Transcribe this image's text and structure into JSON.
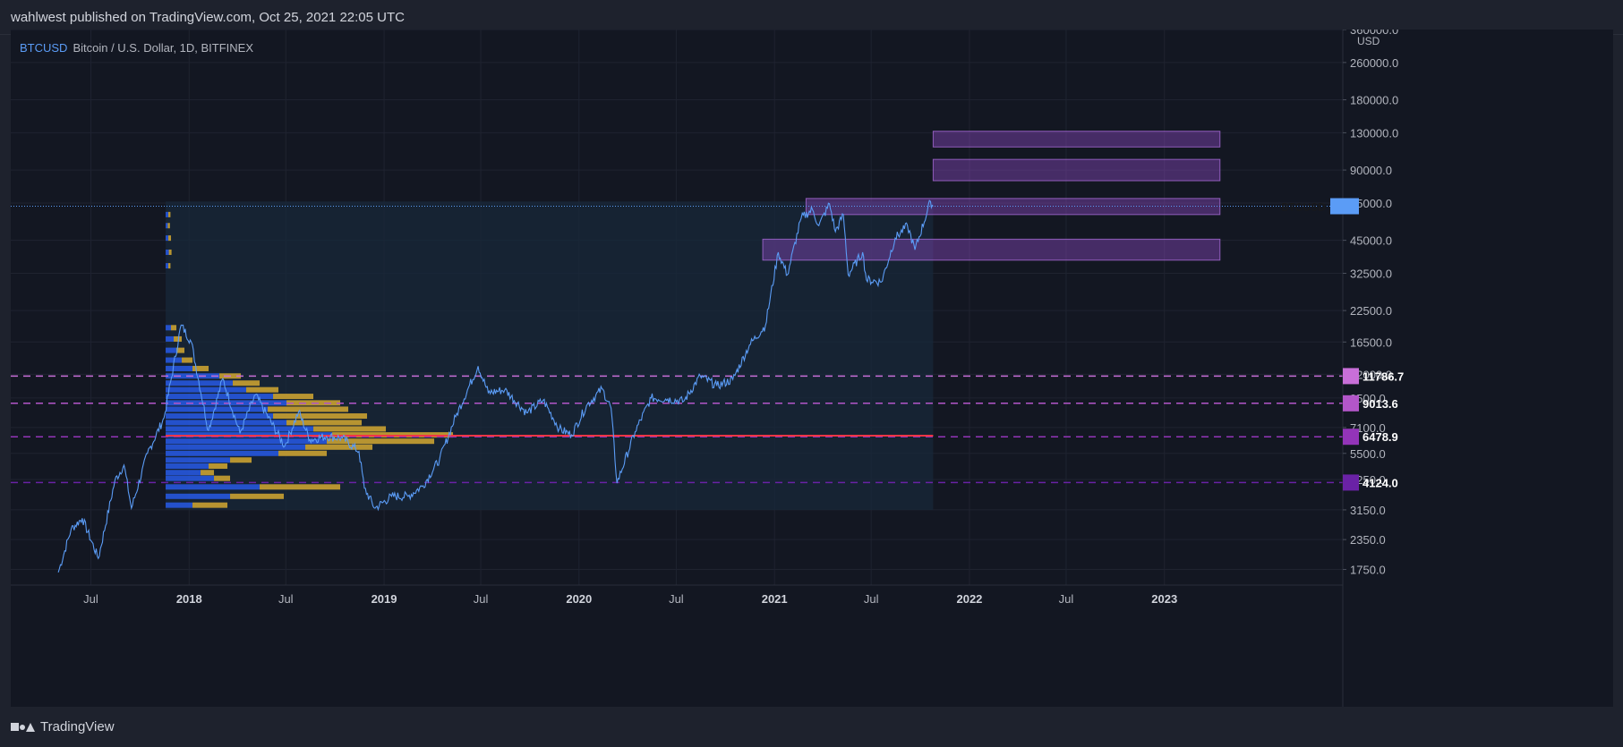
{
  "header": {
    "published": "wahlwest published on TradingView.com, Oct 25, 2021 22:05 UTC"
  },
  "legend": {
    "symbol": "BTCUSD",
    "description": "Bitcoin / U.S. Dollar, 1D, BITFINEX"
  },
  "brand": {
    "name": "TradingView"
  },
  "colors": {
    "background": "#131722",
    "price_line": "#5b9cf6",
    "poc_line": "#f23645",
    "zone_fill": "#9c4fd6",
    "volume_up": "#2962ff",
    "volume_down": "#e0b031"
  },
  "chart_data": {
    "type": "line",
    "yscale": "log",
    "ylim": [
      1500,
      360000
    ],
    "xlim": [
      "2017-02-01",
      "2023-12-01"
    ],
    "ylabel": "USD",
    "y_ticks": [
      1750,
      2350,
      3150,
      4250,
      5500,
      7100,
      9500,
      12000,
      16500,
      22500,
      32500,
      45000,
      65000,
      90000,
      130000,
      180000,
      260000,
      360000
    ],
    "y_tick_labels": [
      "1750.0",
      "2350.0",
      "3150.0",
      "4250.0",
      "5500.0",
      "7100.0",
      "9500.0",
      "12000.0",
      "16500.0",
      "22500.0",
      "32500.0",
      "45000.0",
      "65000.0",
      "90000.0",
      "130000.0",
      "180000.0",
      "260000.0",
      "360000.0"
    ],
    "x_ticks": [
      {
        "date": "2017-07-01",
        "label": "Jul"
      },
      {
        "date": "2018-01-01",
        "label": "2018"
      },
      {
        "date": "2018-07-01",
        "label": "Jul"
      },
      {
        "date": "2019-01-01",
        "label": "2019"
      },
      {
        "date": "2019-07-01",
        "label": "Jul"
      },
      {
        "date": "2020-01-01",
        "label": "2020"
      },
      {
        "date": "2020-07-01",
        "label": "Jul"
      },
      {
        "date": "2021-01-01",
        "label": "2021"
      },
      {
        "date": "2021-07-01",
        "label": "Jul"
      },
      {
        "date": "2022-01-01",
        "label": "2022"
      },
      {
        "date": "2022-07-01",
        "label": "Jul"
      },
      {
        "date": "2023-01-01",
        "label": "2023"
      }
    ],
    "series": [
      {
        "points": [
          [
            "2017-05-01",
            1700
          ],
          [
            "2017-05-25",
            2600
          ],
          [
            "2017-06-15",
            2900
          ],
          [
            "2017-07-15",
            1950
          ],
          [
            "2017-08-15",
            4200
          ],
          [
            "2017-09-01",
            4900
          ],
          [
            "2017-09-15",
            3200
          ],
          [
            "2017-10-15",
            5500
          ],
          [
            "2017-11-15",
            7800
          ],
          [
            "2017-12-17",
            19500
          ],
          [
            "2018-01-05",
            16500
          ],
          [
            "2018-02-06",
            6900
          ],
          [
            "2018-03-05",
            11500
          ],
          [
            "2018-04-06",
            6700
          ],
          [
            "2018-05-05",
            9800
          ],
          [
            "2018-06-29",
            5900
          ],
          [
            "2018-07-25",
            8300
          ],
          [
            "2018-08-15",
            6300
          ],
          [
            "2018-09-15",
            6500
          ],
          [
            "2018-10-15",
            6400
          ],
          [
            "2018-11-15",
            5600
          ],
          [
            "2018-11-25",
            3900
          ],
          [
            "2018-12-15",
            3200
          ],
          [
            "2019-01-15",
            3600
          ],
          [
            "2019-02-15",
            3600
          ],
          [
            "2019-03-15",
            4000
          ],
          [
            "2019-04-15",
            5200
          ],
          [
            "2019-05-15",
            7900
          ],
          [
            "2019-06-26",
            13000
          ],
          [
            "2019-07-15",
            10000
          ],
          [
            "2019-08-15",
            10300
          ],
          [
            "2019-09-25",
            8200
          ],
          [
            "2019-10-26",
            9300
          ],
          [
            "2019-11-25",
            7000
          ],
          [
            "2019-12-18",
            6600
          ],
          [
            "2020-01-15",
            8800
          ],
          [
            "2020-02-13",
            10400
          ],
          [
            "2020-03-01",
            8600
          ],
          [
            "2020-03-12",
            4100
          ],
          [
            "2020-04-15",
            6800
          ],
          [
            "2020-05-15",
            9500
          ],
          [
            "2020-06-15",
            9400
          ],
          [
            "2020-07-15",
            9200
          ],
          [
            "2020-08-15",
            11800
          ],
          [
            "2020-09-15",
            10700
          ],
          [
            "2020-10-15",
            11400
          ],
          [
            "2020-11-15",
            16000
          ],
          [
            "2020-12-15",
            19400
          ],
          [
            "2021-01-08",
            40000
          ],
          [
            "2021-01-25",
            32000
          ],
          [
            "2021-02-20",
            56000
          ],
          [
            "2021-03-13",
            61000
          ],
          [
            "2021-03-25",
            52000
          ],
          [
            "2021-04-14",
            64500
          ],
          [
            "2021-04-25",
            49000
          ],
          [
            "2021-05-10",
            58000
          ],
          [
            "2021-05-19",
            32000
          ],
          [
            "2021-06-15",
            40000
          ],
          [
            "2021-06-22",
            30500
          ],
          [
            "2021-07-20",
            29800
          ],
          [
            "2021-08-15",
            46000
          ],
          [
            "2021-09-07",
            52000
          ],
          [
            "2021-09-21",
            41000
          ],
          [
            "2021-10-20",
            66000
          ],
          [
            "2021-10-25",
            63000
          ]
        ]
      }
    ],
    "current_price": {
      "label": "BTCUSD",
      "value": 63000
    },
    "horizontal_levels": [
      {
        "value": 11786.7,
        "label": "11786.7",
        "color": "#c86fd8"
      },
      {
        "value": 9013.6,
        "label": "9013.6",
        "color": "#b356c9"
      },
      {
        "value": 6478.9,
        "label": "6478.9",
        "color": "#9334b8"
      },
      {
        "value": 4124.0,
        "label": "4124.0",
        "color": "#6a22a6"
      }
    ],
    "poc_level": {
      "value": 6550,
      "start": "2017-11-18",
      "end": "2021-10-25"
    },
    "zones": [
      {
        "low": 113000,
        "high": 132000,
        "start": "2021-10-25",
        "end": "2023-04-15"
      },
      {
        "low": 81000,
        "high": 100000,
        "start": "2021-10-25",
        "end": "2023-04-15"
      },
      {
        "low": 58000,
        "high": 68000,
        "start": "2021-03-01",
        "end": "2023-04-15"
      },
      {
        "low": 37000,
        "high": 45500,
        "start": "2020-12-10",
        "end": "2023-04-15"
      }
    ],
    "volume_profile": {
      "start": "2017-11-18",
      "end": "2021-10-25",
      "low": 3150,
      "high": 66000,
      "rows": [
        {
          "price": 3300,
          "up": 0.1,
          "down": 0.13
        },
        {
          "price": 3600,
          "up": 0.24,
          "down": 0.2
        },
        {
          "price": 3950,
          "up": 0.35,
          "down": 0.3
        },
        {
          "price": 4300,
          "up": 0.18,
          "down": 0.06
        },
        {
          "price": 4550,
          "up": 0.13,
          "down": 0.05
        },
        {
          "price": 4850,
          "up": 0.16,
          "down": 0.07
        },
        {
          "price": 5150,
          "up": 0.24,
          "down": 0.08
        },
        {
          "price": 5500,
          "up": 0.42,
          "down": 0.18
        },
        {
          "price": 5850,
          "up": 0.52,
          "down": 0.25
        },
        {
          "price": 6200,
          "up": 0.6,
          "down": 0.4
        },
        {
          "price": 6600,
          "up": 0.62,
          "down": 0.45
        },
        {
          "price": 7000,
          "up": 0.55,
          "down": 0.27
        },
        {
          "price": 7450,
          "up": 0.45,
          "down": 0.28
        },
        {
          "price": 7950,
          "up": 0.4,
          "down": 0.35
        },
        {
          "price": 8500,
          "up": 0.38,
          "down": 0.3
        },
        {
          "price": 9050,
          "up": 0.45,
          "down": 0.2
        },
        {
          "price": 9650,
          "up": 0.4,
          "down": 0.15
        },
        {
          "price": 10300,
          "up": 0.3,
          "down": 0.12
        },
        {
          "price": 11000,
          "up": 0.25,
          "down": 0.1
        },
        {
          "price": 11800,
          "up": 0.2,
          "down": 0.08
        },
        {
          "price": 12700,
          "up": 0.1,
          "down": 0.06
        },
        {
          "price": 13800,
          "up": 0.06,
          "down": 0.04
        },
        {
          "price": 15200,
          "up": 0.04,
          "down": 0.03
        },
        {
          "price": 17000,
          "up": 0.03,
          "down": 0.03
        },
        {
          "price": 19000,
          "up": 0.02,
          "down": 0.02
        },
        {
          "price": 35000,
          "up": 0.01,
          "down": 0.008
        },
        {
          "price": 40000,
          "up": 0.012,
          "down": 0.01
        },
        {
          "price": 46000,
          "up": 0.01,
          "down": 0.01
        },
        {
          "price": 52000,
          "up": 0.008,
          "down": 0.008
        },
        {
          "price": 58000,
          "up": 0.01,
          "down": 0.008
        }
      ]
    }
  }
}
